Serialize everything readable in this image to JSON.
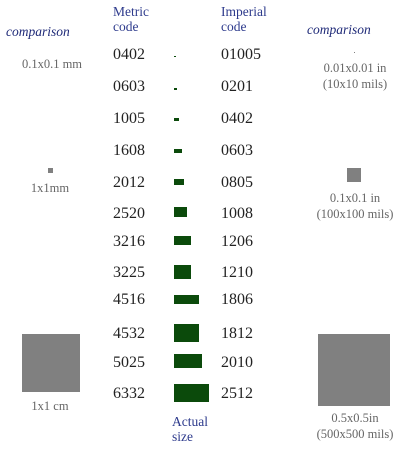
{
  "headers": {
    "metric": [
      "Metric",
      "code"
    ],
    "imperial": [
      "Imperial",
      "code"
    ],
    "comparison_left": "comparison",
    "comparison_right": "comparison",
    "actual_size": [
      "Actual",
      "size"
    ]
  },
  "rows": [
    {
      "metric": "0402",
      "imperial": "01005"
    },
    {
      "metric": "0603",
      "imperial": "0201"
    },
    {
      "metric": "1005",
      "imperial": "0402"
    },
    {
      "metric": "1608",
      "imperial": "0603"
    },
    {
      "metric": "2012",
      "imperial": "0805"
    },
    {
      "metric": "2520",
      "imperial": "1008"
    },
    {
      "metric": "3216",
      "imperial": "1206"
    },
    {
      "metric": "3225",
      "imperial": "1210"
    },
    {
      "metric": "4516",
      "imperial": "1806"
    },
    {
      "metric": "4532",
      "imperial": "1812"
    },
    {
      "metric": "5025",
      "imperial": "2010"
    },
    {
      "metric": "6332",
      "imperial": "2512"
    }
  ],
  "left_comparisons": {
    "small": "0.1x0.1 mm",
    "medium": "1x1mm",
    "large": "1x1 cm"
  },
  "right_comparisons": {
    "small": [
      "0.01x0.01 in",
      "(10x10 mils)"
    ],
    "medium": [
      "0.1x0.1 in",
      "(100x100 mils)"
    ],
    "large": [
      "0.5x0.5in",
      "(500x500 mils)"
    ]
  },
  "colors": {
    "chip": "#0b4a0b",
    "comparison_square": "#808080",
    "header_text": "#2d3a8c"
  }
}
